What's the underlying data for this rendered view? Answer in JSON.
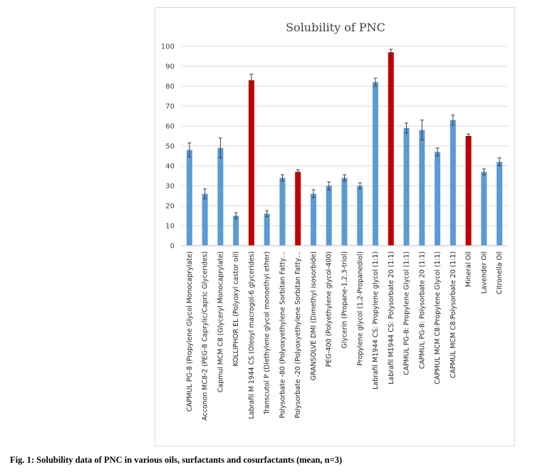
{
  "chart_data": {
    "type": "bar",
    "title": "Solubility of PNC",
    "xlabel": "",
    "ylabel": "",
    "ylim": [
      0,
      100
    ],
    "yticks": [
      0,
      10,
      20,
      30,
      40,
      50,
      60,
      70,
      80,
      90,
      100
    ],
    "grid": true,
    "colors": {
      "default": "#5b9bd5",
      "highlight": "#c00000"
    },
    "categories": [
      "CAPMUL PG-8 (Propylene Glycol Monocaprylate)",
      "Acconon MC8-2 (PEG-8 Caprylic/Capric Glycerides)",
      "Capmul MCM C8 (Glyceryl Monocaprylate)",
      "KOLLIPHOR EL (Polyoxyl castor oil)",
      "Labrafil M 1944 CS (Oleoyl macrogol-6 glycerides)",
      "Transcutol P (Diethylene glycol monoethyl ether)",
      "Polysorbate -80 (Polyoxyethylene Sorbitan Fatty…",
      "Polysorbate -20 (Polyoxyethylene Sorbitan Fatty…",
      "GRANSOLVE DMI (Dimethyl isosorbide)",
      "PEG-400 (Polyethylene glycol-400)",
      "Glycerin (Propane-1,2,3-triol)",
      "Propylene glycol (1,2-Propanediol)",
      "Labrafil M1944 CS: Propylene glycol (1:1)",
      "Labrafil M1944 CS: Polysorbate 20 (1:1)",
      "CAPMUL PG-8: Propylene Glycol (1:1)",
      "CAPMUL PG-8: Polysorbate 20 (1:1)",
      "CAPMUL MCM C8:Propylene Glycol (1:1)",
      "CAPMUL MCM C8:Polysorbate 20 (1:1)",
      "Mineral Oil",
      "Lavender Oil",
      "Citronella Oil"
    ],
    "values": [
      48,
      26,
      49,
      15,
      83,
      16,
      34,
      37,
      26,
      30,
      34,
      30,
      82,
      97,
      59,
      58,
      47,
      63,
      55,
      37,
      42
    ],
    "errors": [
      3.5,
      2.5,
      5,
      1.5,
      3,
      1.5,
      1.5,
      1,
      2,
      2,
      1.5,
      1.5,
      2,
      1.5,
      2.5,
      5,
      2,
      2.5,
      1,
      1.5,
      2
    ],
    "highlighted": [
      false,
      false,
      false,
      false,
      true,
      false,
      false,
      true,
      false,
      false,
      false,
      false,
      false,
      true,
      false,
      false,
      false,
      false,
      true,
      false,
      false
    ]
  },
  "caption": "Fig. 1: Solubility data of PNC in various oils, surfactants and cosurfactants (mean, n=3)"
}
